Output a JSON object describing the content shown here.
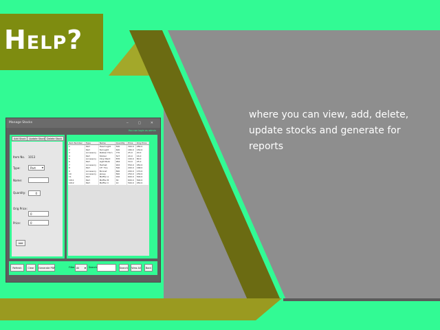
{
  "help_title": "Help?",
  "description": "where you can view, add, delete, update stocks and generate for reports",
  "window": {
    "title": "Manage Stocks",
    "login_note": "You can login as admin",
    "tabs": [
      "Add Stock",
      "Update Stock",
      "Delete Stock"
    ],
    "form": {
      "item_no_label": "Item No.",
      "item_no_value": "1013",
      "type_label": "Type:",
      "type_value": "Part",
      "name_label": "Name:",
      "quantity_label": "Quantity:",
      "quantity_value": "0",
      "orig_price_label": "Orig Price:",
      "orig_price_value": "0",
      "price_label": "Price:",
      "price_value": "0",
      "add_label": "Add"
    },
    "table": {
      "headers": [
        "Item Number",
        "Type",
        "Name",
        "Quantity",
        "Price",
        "Orig Price"
      ],
      "rows": [
        [
          "1",
          "Part",
          "Head Light",
          "500",
          "300.0",
          "280.0"
        ],
        [
          "2",
          "Part",
          "Tail Light",
          "600",
          "180.0",
          "150.0"
        ],
        [
          "3",
          "Accessory",
          "Rubber Horn",
          "770",
          "25.0",
          "20.0"
        ],
        [
          "4",
          "Part",
          "Sticker",
          "527",
          "20.0",
          "16.0"
        ],
        [
          "5",
          "Accessory",
          "Vinyl Paint",
          "876",
          "100.0",
          "80.0"
        ],
        [
          "6",
          "Part",
          "Light Bulb",
          "964",
          "34.0",
          "25.0"
        ],
        [
          "7",
          "Accessory",
          "Helmet",
          "902",
          "550.0",
          "450.0"
        ],
        [
          "8",
          "Part",
          "15\" Tire",
          "590",
          "200.0",
          "168.0"
        ],
        [
          "9",
          "Accessory",
          "Bonnet",
          "840",
          "200.0",
          "170.0"
        ],
        [
          "10",
          "Accessory",
          "Jersey",
          "840",
          "250.0",
          "230.0"
        ],
        [
          "11",
          "Part",
          "Muffler A",
          "910",
          "600.0",
          "500.0"
        ],
        [
          "1011",
          "Part",
          "Muffler B",
          "30",
          "600.0",
          "500.0"
        ],
        [
          "1012",
          "Part",
          "Muffler C",
          "12",
          "500.0",
          "450.0"
        ]
      ]
    },
    "bottom": {
      "refresh": "Refresh",
      "clear": "Clear",
      "generate_pdf": "Generate PDF",
      "filter_label": "Filter:",
      "filter_value": "All",
      "search_label": "Search:",
      "search_button": "Search",
      "view_all": "View All",
      "back": "Back"
    }
  }
}
